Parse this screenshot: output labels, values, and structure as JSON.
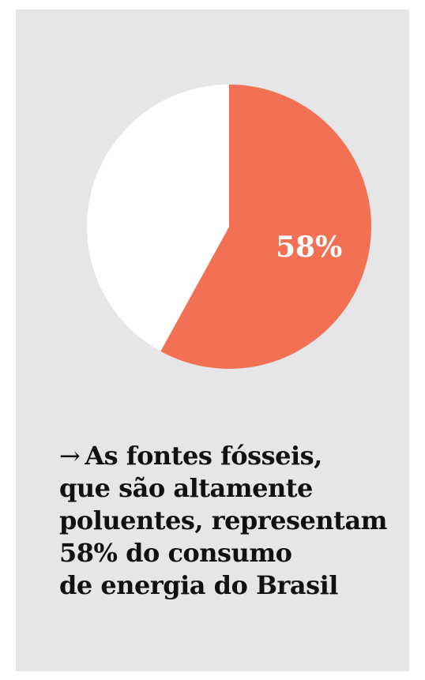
{
  "chart_data": {
    "type": "pie",
    "slices": [
      {
        "value": 58,
        "color": "#f27155",
        "label": "58%"
      },
      {
        "value": 42,
        "color": "#ffffff",
        "label": ""
      }
    ]
  },
  "caption": {
    "arrow": "→",
    "lines": [
      "As fontes fósseis,",
      "que são altamente",
      "poluentes, representam",
      "58% do consumo",
      "de energia do Brasil"
    ]
  },
  "colors": {
    "background": "#e6e6e8",
    "accent": "#f27155",
    "text": "#111111"
  }
}
